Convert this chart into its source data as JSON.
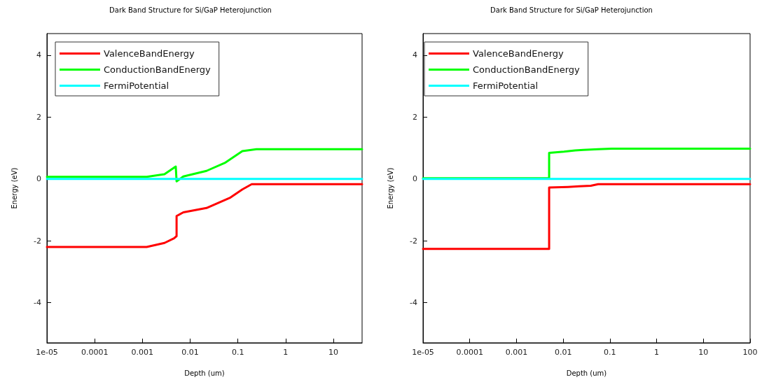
{
  "chart_data": [
    {
      "type": "line",
      "title": "Dark Band Structure for Si/GaP Heterojunction",
      "xlabel": "Depth (um)",
      "ylabel": "Energy (eV)",
      "log": "x",
      "grid": false,
      "legend": "top left",
      "xlim": [
        1e-05,
        40
      ],
      "xticks": [
        {
          "value": 1e-05,
          "label": "1e-05"
        },
        0.0001,
        0.001,
        0.01,
        0.1,
        1,
        10
      ],
      "ylim": [
        -5.3,
        4.7
      ],
      "yticks": [
        -4,
        -2,
        0,
        2,
        4
      ],
      "series": [
        {
          "name": "ValenceBandEnergy",
          "color": "#ff0000",
          "x": [
            1e-05,
            0.00123,
            0.0029,
            0.0046,
            0.0052,
            0.0052,
            0.0072,
            0.022,
            0.07,
            0.124,
            0.195,
            40
          ],
          "values": [
            -2.2,
            -2.2,
            -2.07,
            -1.92,
            -1.85,
            -1.2,
            -1.08,
            -0.94,
            -0.6,
            -0.34,
            -0.17,
            -0.17
          ]
        },
        {
          "name": "ConductionBandEnergy",
          "color": "#00ff00",
          "x": [
            1e-05,
            0.00123,
            0.0029,
            0.005,
            0.0052,
            0.0072,
            0.022,
            0.055,
            0.124,
            0.245,
            40
          ],
          "values": [
            0.07,
            0.07,
            0.15,
            0.4,
            -0.08,
            0.08,
            0.26,
            0.53,
            0.9,
            0.96,
            0.96
          ]
        },
        {
          "name": "FermiPotential",
          "color": "#00ffff",
          "x": [
            1e-05,
            40
          ],
          "values": [
            0,
            0
          ]
        }
      ]
    },
    {
      "type": "line",
      "title": "Dark Band Structure for Si/GaP Heterojunction",
      "xlabel": "Depth (um)",
      "ylabel": "Energy (eV)",
      "log": "x",
      "grid": false,
      "legend": "top left",
      "xlim": [
        1e-05,
        100
      ],
      "xticks": [
        {
          "value": 1e-05,
          "label": "1e-05"
        },
        0.0001,
        0.001,
        0.01,
        0.1,
        1,
        10,
        100
      ],
      "ylim": [
        -5.3,
        4.7
      ],
      "yticks": [
        -4,
        -2,
        0,
        2,
        4
      ],
      "series": [
        {
          "name": "ValenceBandEnergy",
          "color": "#ff0000",
          "x": [
            1e-05,
            0.005,
            0.005,
            0.0126,
            0.022,
            0.039,
            0.056,
            100
          ],
          "values": [
            -2.26,
            -2.26,
            -0.28,
            -0.26,
            -0.24,
            -0.22,
            -0.17,
            -0.17
          ]
        },
        {
          "name": "ConductionBandEnergy",
          "color": "#00ff00",
          "x": [
            1e-05,
            0.005,
            0.005,
            0.0104,
            0.018,
            0.027,
            0.056,
            0.11,
            100
          ],
          "values": [
            0.02,
            0.02,
            0.84,
            0.88,
            0.92,
            0.94,
            0.96,
            0.98,
            0.98
          ]
        },
        {
          "name": "FermiPotential",
          "color": "#00ffff",
          "x": [
            1e-05,
            100
          ],
          "values": [
            0,
            0
          ]
        }
      ]
    }
  ]
}
